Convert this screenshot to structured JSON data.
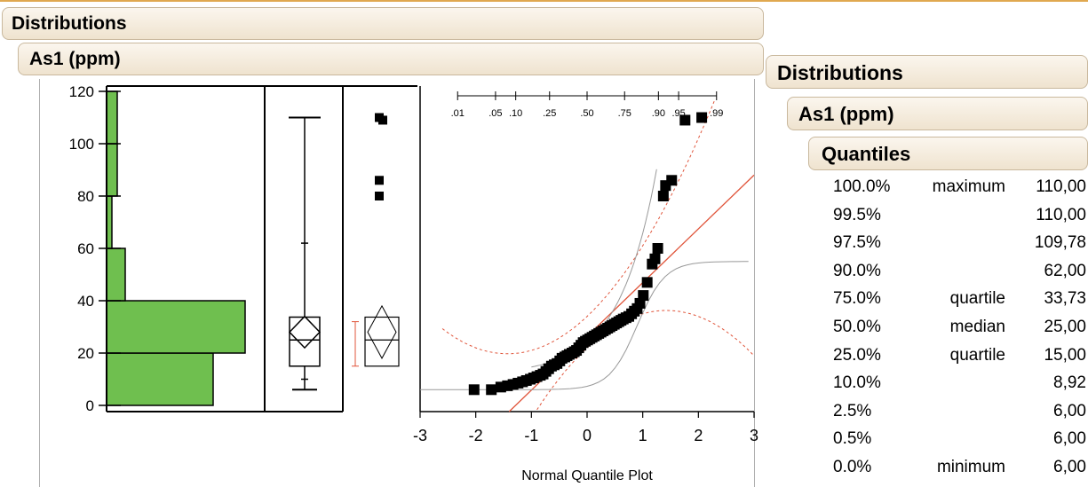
{
  "headers": {
    "distributions_left": "Distributions",
    "variable_left": "As1 (ppm)",
    "distributions_right": "Distributions",
    "variable_right": "As1 (ppm)",
    "quantiles": "Quantiles"
  },
  "quantiles": [
    {
      "pct": "100.0%",
      "label": "maximum",
      "value": "110,00"
    },
    {
      "pct": "99.5%",
      "label": "",
      "value": "110,00"
    },
    {
      "pct": "97.5%",
      "label": "",
      "value": "109,78"
    },
    {
      "pct": "90.0%",
      "label": "",
      "value": "62,00"
    },
    {
      "pct": "75.0%",
      "label": "quartile",
      "value": "33,73"
    },
    {
      "pct": "50.0%",
      "label": "median",
      "value": "25,00"
    },
    {
      "pct": "25.0%",
      "label": "quartile",
      "value": "15,00"
    },
    {
      "pct": "10.0%",
      "label": "",
      "value": "8,92"
    },
    {
      "pct": "2.5%",
      "label": "",
      "value": "6,00"
    },
    {
      "pct": "0.5%",
      "label": "",
      "value": "6,00"
    },
    {
      "pct": "0.0%",
      "label": "minimum",
      "value": "6,00"
    }
  ],
  "colors": {
    "histogram_fill": "#6fbf4f",
    "fit_line": "#e0553b",
    "header_bg": "#f4ecdf"
  },
  "chart_data": [
    {
      "type": "bar",
      "orientation": "horizontal",
      "y_ticks": [
        0,
        20,
        40,
        60,
        80,
        100,
        120
      ],
      "ylim": [
        0,
        120
      ],
      "bins": [
        {
          "from": 0,
          "to": 20,
          "count": 40
        },
        {
          "from": 20,
          "to": 40,
          "count": 52
        },
        {
          "from": 40,
          "to": 60,
          "count": 7
        },
        {
          "from": 60,
          "to": 80,
          "count": 2
        },
        {
          "from": 80,
          "to": 100,
          "count": 4
        },
        {
          "from": 100,
          "to": 120,
          "count": 4
        }
      ],
      "count_max": 55
    },
    {
      "type": "boxplot",
      "min": 6,
      "q1": 15,
      "median": 25,
      "q3": 33.73,
      "max": 110,
      "mean": 28,
      "mean_ci": [
        22,
        34
      ],
      "whisker_low": 6,
      "whisker_high": 110,
      "tick_p90": 62,
      "outliers": [
        110,
        109,
        86,
        80
      ]
    },
    {
      "type": "scatter",
      "xlabel": "Normal Quantile Plot",
      "x_ticks": [
        -3,
        -2,
        -1,
        0,
        1,
        2,
        3
      ],
      "xlim": [
        -3,
        3
      ],
      "ylim": [
        0,
        120
      ],
      "top_axis_ticks": [
        {
          "p": ".01",
          "z": -2.326
        },
        {
          "p": ".05",
          "z": -1.645
        },
        {
          "p": ".10",
          "z": -1.282
        },
        {
          "p": ".25",
          "z": -0.674
        },
        {
          "p": ".50",
          "z": 0
        },
        {
          "p": ".75",
          "z": 0.674
        },
        {
          "p": ".90",
          "z": 1.282
        },
        {
          "p": ".95",
          "z": 1.645
        },
        {
          "p": ".99",
          "z": 2.326
        }
      ],
      "points": [
        [
          -2.03,
          6
        ],
        [
          -1.72,
          6
        ],
        [
          -1.55,
          7
        ],
        [
          -1.43,
          7.5
        ],
        [
          -1.33,
          8
        ],
        [
          -1.24,
          8.5
        ],
        [
          -1.16,
          9
        ],
        [
          -1.09,
          9.5
        ],
        [
          -1.02,
          10
        ],
        [
          -0.96,
          10.5
        ],
        [
          -0.9,
          11
        ],
        [
          -0.84,
          11.5
        ],
        [
          -0.79,
          12
        ],
        [
          -0.74,
          13
        ],
        [
          -0.69,
          14
        ],
        [
          -0.64,
          15
        ],
        [
          -0.59,
          15.5
        ],
        [
          -0.54,
          16
        ],
        [
          -0.49,
          17
        ],
        [
          -0.45,
          18
        ],
        [
          -0.4,
          18.5
        ],
        [
          -0.36,
          19
        ],
        [
          -0.32,
          19.5
        ],
        [
          -0.27,
          20
        ],
        [
          -0.23,
          20.5
        ],
        [
          -0.19,
          21
        ],
        [
          -0.15,
          22
        ],
        [
          -0.11,
          23
        ],
        [
          -0.07,
          24
        ],
        [
          -0.03,
          24.5
        ],
        [
          0.01,
          25
        ],
        [
          0.05,
          25.5
        ],
        [
          0.09,
          26
        ],
        [
          0.13,
          26.5
        ],
        [
          0.17,
          27
        ],
        [
          0.21,
          27.5
        ],
        [
          0.25,
          28
        ],
        [
          0.29,
          28.5
        ],
        [
          0.33,
          29
        ],
        [
          0.37,
          29.5
        ],
        [
          0.41,
          30
        ],
        [
          0.45,
          30.5
        ],
        [
          0.49,
          31
        ],
        [
          0.53,
          31.5
        ],
        [
          0.57,
          32
        ],
        [
          0.61,
          32.5
        ],
        [
          0.65,
          33
        ],
        [
          0.7,
          33.5
        ],
        [
          0.75,
          34
        ],
        [
          0.8,
          35
        ],
        [
          0.85,
          36
        ],
        [
          0.9,
          37
        ],
        [
          0.95,
          39
        ],
        [
          1.01,
          42
        ],
        [
          1.08,
          47
        ],
        [
          1.17,
          54
        ],
        [
          1.22,
          56
        ],
        [
          1.27,
          60
        ],
        [
          1.37,
          80
        ],
        [
          1.41,
          84
        ],
        [
          1.52,
          86
        ],
        [
          1.76,
          109
        ],
        [
          2.06,
          110
        ]
      ],
      "fit_line": {
        "intercept": 28,
        "slope": 20
      },
      "ci_bands": true
    }
  ]
}
